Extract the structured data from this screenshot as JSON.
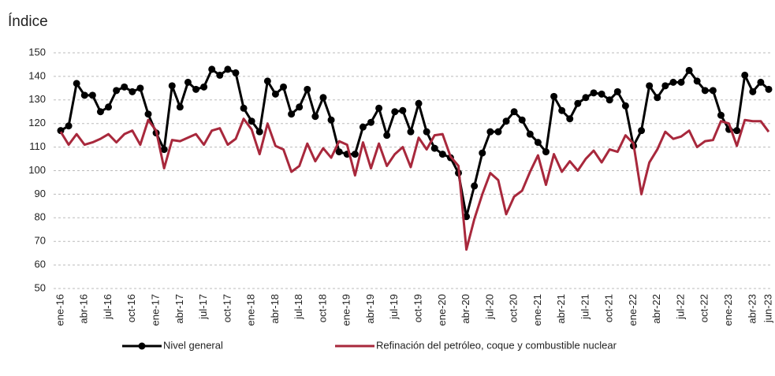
{
  "chart_data": {
    "type": "line",
    "title": "Índice",
    "categories": [
      "ene-16",
      null,
      null,
      "abr-16",
      null,
      null,
      "jul-16",
      null,
      null,
      "oct-16",
      null,
      null,
      "ene-17",
      null,
      null,
      "abr-17",
      null,
      null,
      "jul-17",
      null,
      null,
      "oct-17",
      null,
      null,
      "ene-18",
      null,
      null,
      "abr-18",
      null,
      null,
      "jul-18",
      null,
      null,
      "oct-18",
      null,
      null,
      "ene-19",
      null,
      null,
      "abr-19",
      null,
      null,
      "jul-19",
      null,
      null,
      "oct-19",
      null,
      null,
      "ene-20",
      null,
      null,
      "abr-20",
      null,
      null,
      "jul-20",
      null,
      null,
      "oct-20",
      null,
      null,
      "ene-21",
      null,
      null,
      "abr-21",
      null,
      null,
      "jul-21",
      null,
      null,
      "oct-21",
      null,
      null,
      "ene-22",
      null,
      null,
      "abr-22",
      null,
      null,
      "jul-22",
      null,
      null,
      "oct-22",
      null,
      null,
      "ene-23",
      null,
      null,
      "abr-23",
      null,
      "jun-23"
    ],
    "series": [
      {
        "name": "Nivel general",
        "color": "#000000",
        "markers": true,
        "values": [
          117,
          119,
          137,
          132,
          132,
          125,
          127,
          134,
          135.5,
          133.5,
          135,
          124,
          116,
          109,
          136,
          127,
          137.5,
          134.5,
          135.5,
          143,
          140.5,
          143,
          141.5,
          126.5,
          121,
          116.5,
          138,
          132.5,
          135.5,
          124,
          127,
          134.5,
          123,
          131,
          121.5,
          108,
          107,
          107,
          118.5,
          120.5,
          126.5,
          115,
          125,
          125.5,
          116.5,
          128.5,
          116.5,
          109.5,
          107,
          105.5,
          99,
          80.5,
          93.5,
          107.5,
          116.5,
          116.5,
          121,
          125,
          121.5,
          115.5,
          112,
          108,
          131.5,
          125.5,
          122,
          128.5,
          131,
          133,
          132.5,
          130,
          133.5,
          127.5,
          110.5,
          117,
          136,
          131,
          136,
          137.5,
          137.5,
          142.5,
          138,
          134,
          134,
          123.5,
          117.5,
          117,
          140.5,
          133.5,
          137.5,
          134.5
        ]
      },
      {
        "name": "Refinación del petróleo, coque y combustible nuclear",
        "color": "#a8283c",
        "markers": false,
        "values": [
          116.5,
          111,
          115.5,
          111,
          112,
          113.5,
          115.5,
          112,
          115.5,
          117,
          111,
          121.5,
          117,
          101,
          113,
          112.5,
          114,
          115.5,
          111,
          117,
          118,
          111,
          113.5,
          122,
          117.5,
          107,
          120,
          110.5,
          109,
          99.5,
          102,
          111.5,
          104,
          109.5,
          105.5,
          112.5,
          111,
          98,
          112,
          101,
          111.5,
          102,
          107,
          110,
          101.5,
          114,
          109,
          115,
          115.5,
          106,
          102,
          66.5,
          79.5,
          90,
          99,
          96,
          81.5,
          89,
          91.5,
          99.5,
          106.5,
          94,
          107,
          99.5,
          104,
          100,
          105,
          108.5,
          103.5,
          109,
          108,
          115,
          111.5,
          90,
          103.5,
          109,
          116.5,
          113.5,
          114.5,
          117,
          110,
          112.5,
          113,
          121,
          120,
          110.5,
          121.5,
          121,
          121,
          116.5
        ]
      }
    ],
    "ylim": [
      50,
      150
    ],
    "yticks": [
      50,
      60,
      70,
      80,
      90,
      100,
      110,
      120,
      130,
      140,
      150
    ],
    "grid": true,
    "legend": "bottom"
  }
}
